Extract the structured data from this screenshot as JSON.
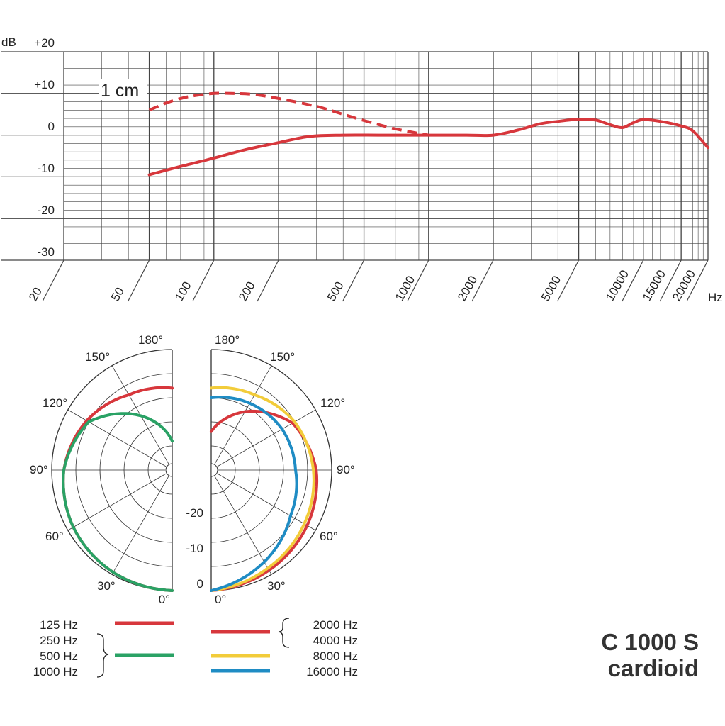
{
  "product": {
    "model": "C 1000 S",
    "pattern": "cardioid"
  },
  "chart_data": [
    {
      "type": "line",
      "chart": "frequency-response",
      "ylabel": "dB",
      "xlabel": "Hz",
      "x_scale": "log",
      "xlim": [
        20,
        20000
      ],
      "ylim": [
        -30,
        20
      ],
      "grid": true,
      "yticks": [
        "+20",
        "+10",
        "0",
        "-10",
        "-20",
        "-30"
      ],
      "xticks": [
        "20",
        "50",
        "100",
        "200",
        "500",
        "1000",
        "2000",
        "5000",
        "10000",
        "15000",
        "20000"
      ],
      "annotations": [
        "1 cm"
      ],
      "series": [
        {
          "name": "",
          "style": "solid",
          "color": "#d7373c",
          "x": [
            50,
            70,
            100,
            140,
            200,
            280,
            400,
            600,
            1000,
            1500,
            2000,
            2600,
            3300,
            4000,
            5000,
            6000,
            7000,
            8000,
            9000,
            10000,
            12000,
            15000,
            17000,
            20000
          ],
          "y": [
            -9.5,
            -7.5,
            -5.5,
            -3.5,
            -1.8,
            -0.3,
            0,
            0,
            0,
            0,
            0,
            1.2,
            2.7,
            3.3,
            3.8,
            3.6,
            2.5,
            1.8,
            3,
            3.7,
            3.3,
            2.2,
            1,
            -3
          ]
        },
        {
          "name": "1 cm",
          "style": "dashed",
          "color": "#d7373c",
          "x": [
            50,
            60,
            70,
            80,
            100,
            120,
            150,
            200,
            300,
            400,
            500,
            700,
            1000
          ],
          "y": [
            6,
            7.7,
            8.8,
            9.4,
            10,
            10,
            9.8,
            8.8,
            6.9,
            5,
            3.5,
            1.5,
            0
          ]
        }
      ]
    },
    {
      "type": "polar",
      "chart": "polar-pattern",
      "angle_labels": [
        "0°",
        "30°",
        "60°",
        "90°",
        "120°",
        "150°",
        "180°"
      ],
      "radial_labels": [
        "0",
        "-10",
        "-20"
      ],
      "series": [
        {
          "name": "125 Hz",
          "color": "#d7373c",
          "side": "left",
          "angles": [
            0,
            30,
            60,
            90,
            120,
            150,
            180
          ],
          "levels_db": [
            0,
            -0.5,
            -1.3,
            -2.5,
            -4.5,
            -7,
            -8
          ]
        },
        {
          "name": "250 Hz / 500 Hz / 1000 Hz",
          "color": "#2aa265",
          "side": "left",
          "angles": [
            0,
            30,
            60,
            90,
            120,
            150,
            180
          ],
          "levels_db": [
            0,
            -0.5,
            -1.3,
            -2.5,
            -5,
            -12,
            -19
          ]
        },
        {
          "name": "2000 Hz / 4000 Hz",
          "color": "#d7373c",
          "side": "right",
          "angles": [
            0,
            30,
            60,
            90,
            120,
            150,
            180
          ],
          "levels_db": [
            0,
            -1,
            -2,
            -3.2,
            -5.5,
            -11,
            -17
          ]
        },
        {
          "name": "8000 Hz",
          "color": "#f2cc3a",
          "side": "right",
          "angles": [
            0,
            30,
            60,
            90,
            120,
            150,
            180
          ],
          "levels_db": [
            0,
            -1.5,
            -2.7,
            -3.8,
            -5,
            -7,
            -8
          ]
        },
        {
          "name": "16000 Hz",
          "color": "#1f8cc4",
          "side": "right",
          "angles": [
            0,
            30,
            60,
            90,
            120,
            150,
            180
          ],
          "levels_db": [
            0,
            -3,
            -6,
            -7.5,
            -8,
            -9,
            -10
          ]
        }
      ]
    }
  ],
  "legend": {
    "left": [
      "125 Hz",
      "250 Hz",
      "500 Hz",
      "1000 Hz"
    ],
    "right": [
      "2000 Hz",
      "4000 Hz",
      "8000 Hz",
      "16000 Hz"
    ]
  }
}
